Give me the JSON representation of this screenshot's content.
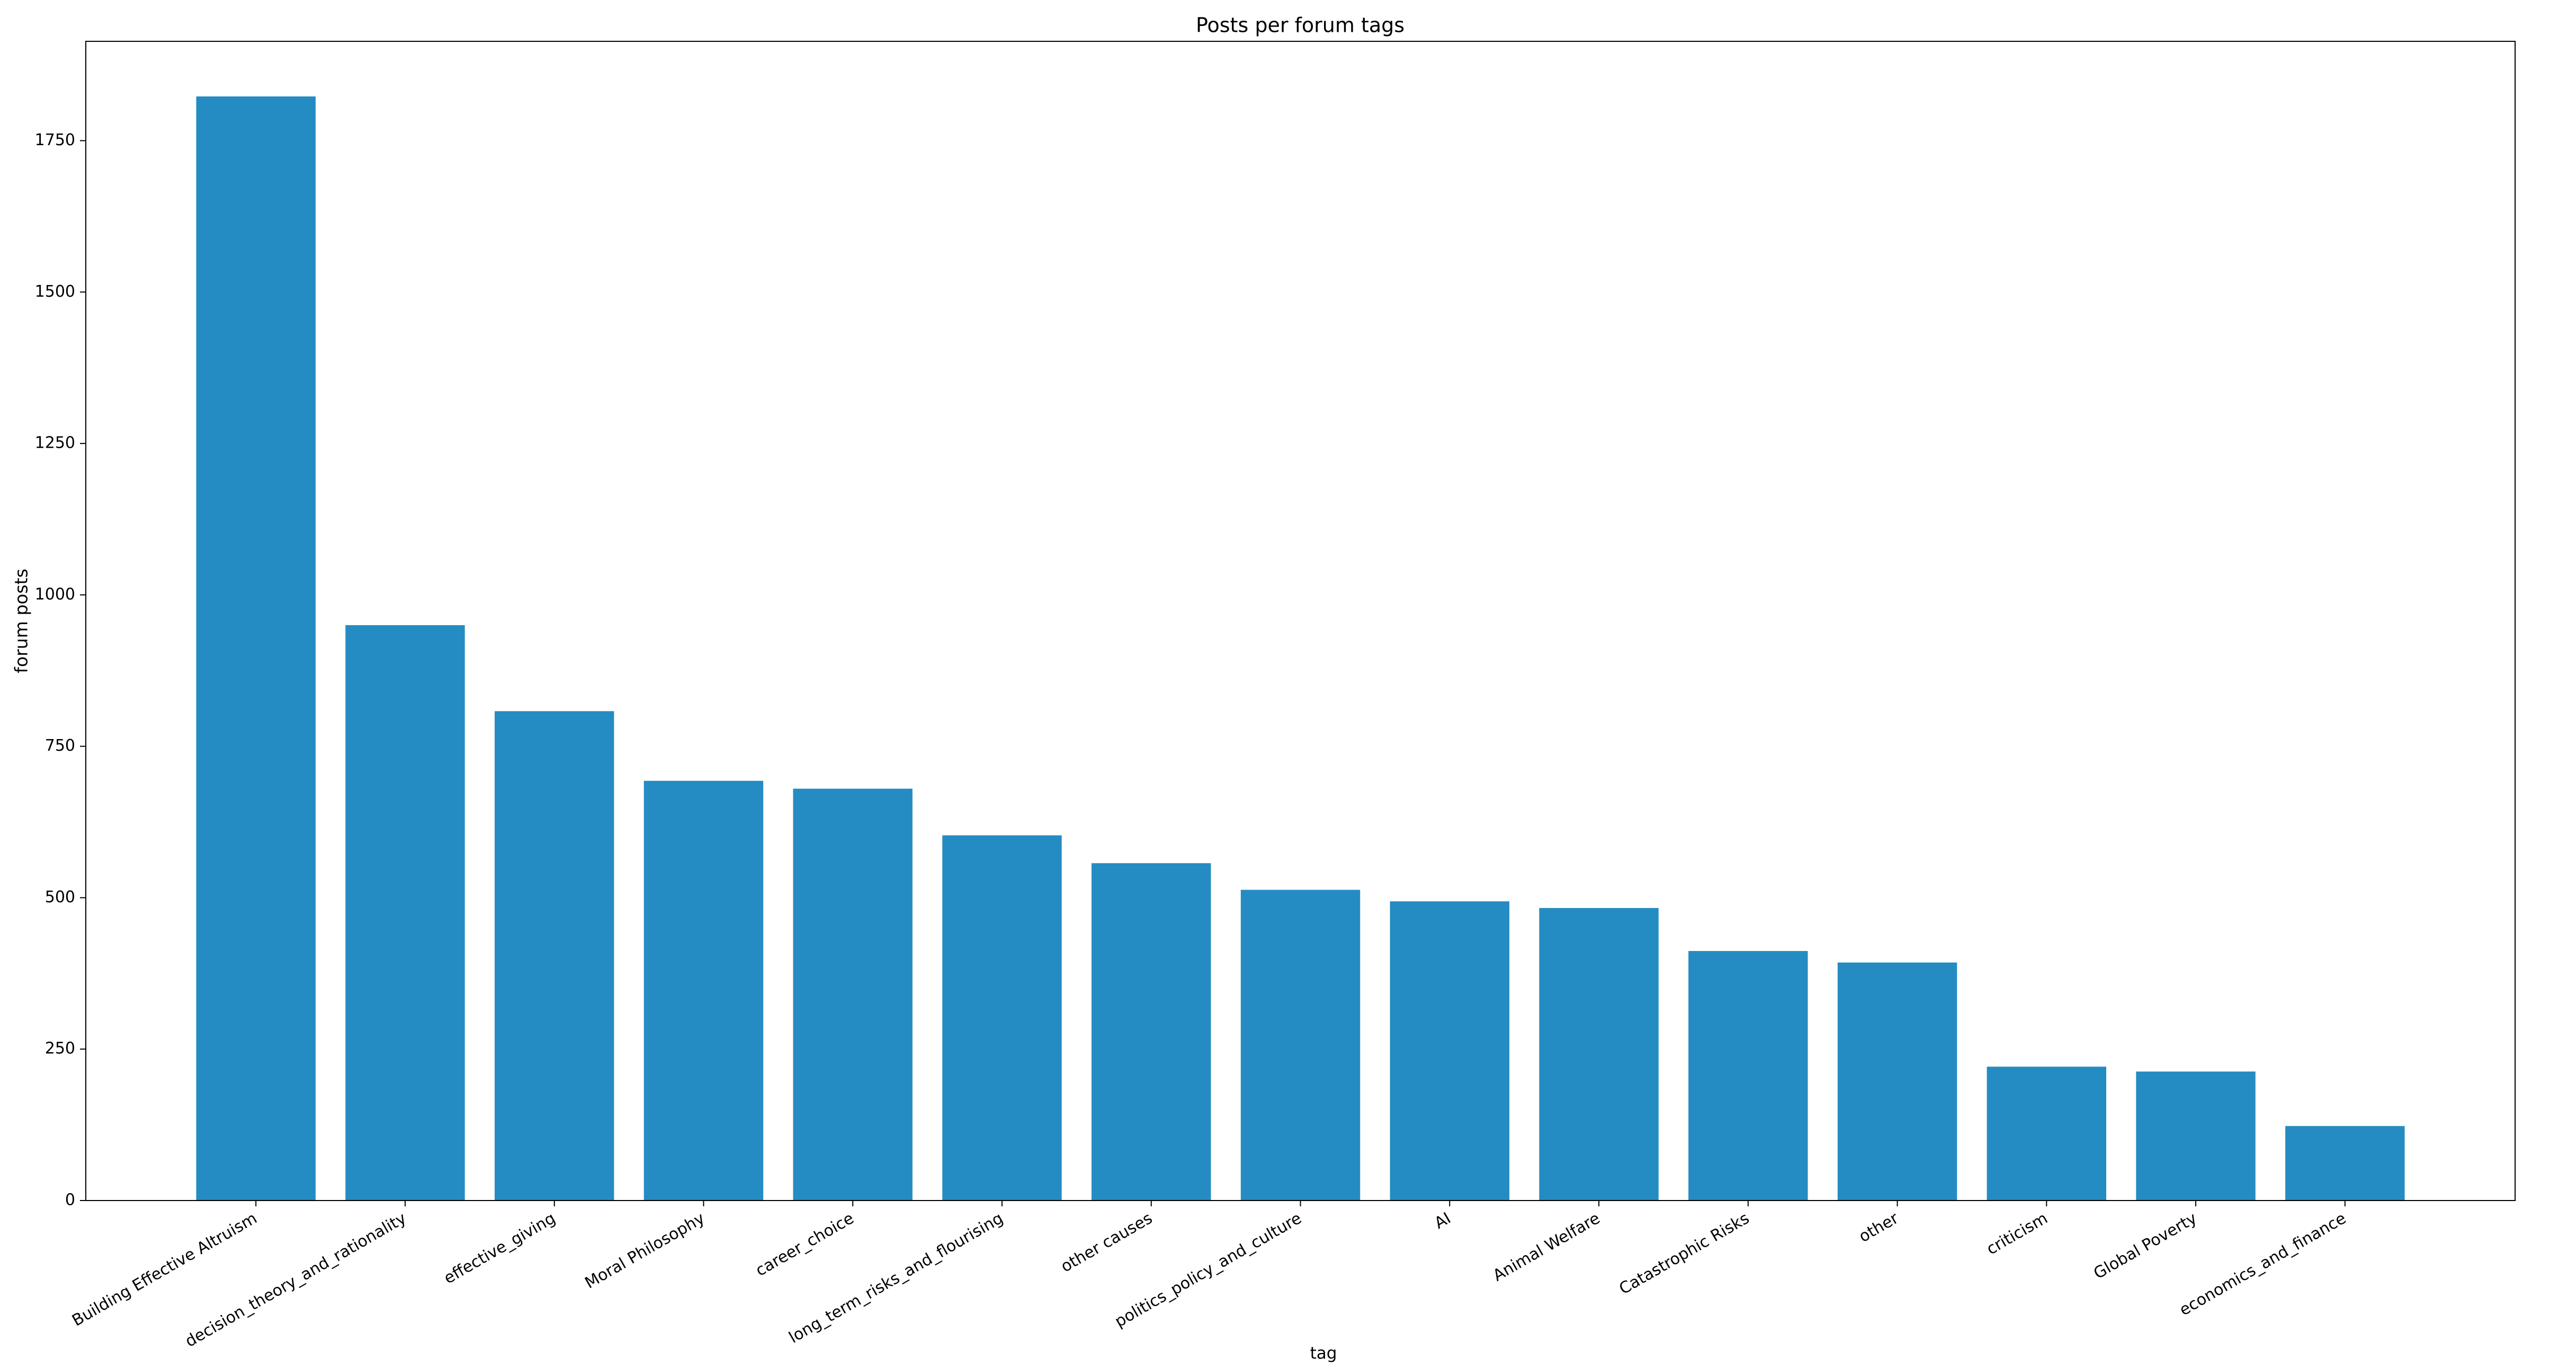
{
  "chart_data": {
    "type": "bar",
    "title": "Posts per forum tags",
    "x_label": "tag",
    "y_label": "forum posts",
    "categories": [
      "Building Effective Altruism",
      "decision_theory_and_rationality",
      "effective_giving",
      "Moral Philosophy",
      "career_choice",
      "long_term_risks_and_flourising",
      "other causes",
      "politics_policy_and_culture",
      "AI",
      "Animal Welfare",
      "Catastrophic Risks",
      "other",
      "criticism",
      "Global Poverty",
      "economics_and_finance"
    ],
    "values": [
      1823,
      950,
      808,
      693,
      680,
      603,
      557,
      513,
      494,
      483,
      412,
      393,
      221,
      213,
      123
    ],
    "color": "#248cc2",
    "ylim": [
      0,
      1914
    ],
    "yticks": [
      0,
      250,
      500,
      750,
      1000,
      1250,
      1500,
      1750
    ],
    "grid": false
  }
}
